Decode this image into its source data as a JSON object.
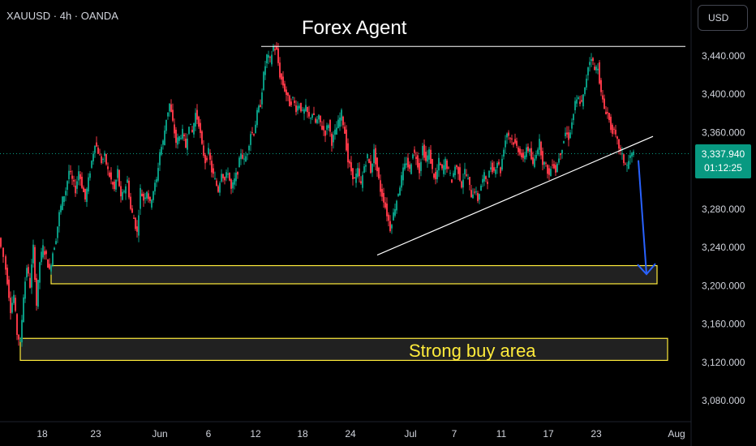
{
  "header": {
    "symbol_line": "XAUUSD · 4h · OANDA",
    "currency_button": "USD"
  },
  "annotations": {
    "title": "Forex Agent",
    "zone_label": "Strong buy area"
  },
  "price_badge": {
    "price": "3,337.940",
    "countdown": "01:12:25",
    "color": "#089981"
  },
  "colors": {
    "up": "#089981",
    "down": "#f23645",
    "zone_border": "#ffeb3b",
    "arrow": "#2962ff",
    "background": "#000000"
  },
  "chart_data": {
    "type": "candlestick",
    "title": "",
    "xlabel": "",
    "ylabel": "",
    "ylim": [
      3060,
      3465
    ],
    "grid": false,
    "x_tick_labels": [
      "18",
      "23",
      "Jun",
      "6",
      "12",
      "18",
      "24",
      "Jul",
      "7",
      "11",
      "17",
      "23",
      "Aug"
    ],
    "y_tick_labels": [
      "3,440.000",
      "3,400.000",
      "3,360.000",
      "3,280.000",
      "3,240.000",
      "3,200.000",
      "3,160.000",
      "3,120.000",
      "3,080.000"
    ],
    "y_tick_values": [
      3440,
      3400,
      3360,
      3280,
      3240,
      3200,
      3160,
      3120,
      3080
    ],
    "last_price": 3337.94,
    "close_path": [
      [
        0,
        3250
      ],
      [
        6,
        3230
      ],
      [
        10,
        3205
      ],
      [
        14,
        3175
      ],
      [
        18,
        3190
      ],
      [
        22,
        3150
      ],
      [
        26,
        3140
      ],
      [
        30,
        3190
      ],
      [
        34,
        3220
      ],
      [
        38,
        3200
      ],
      [
        42,
        3240
      ],
      [
        46,
        3180
      ],
      [
        50,
        3225
      ],
      [
        54,
        3240
      ],
      [
        58,
        3230
      ],
      [
        62,
        3215
      ],
      [
        66,
        3235
      ],
      [
        70,
        3250
      ],
      [
        74,
        3275
      ],
      [
        78,
        3290
      ],
      [
        82,
        3300
      ],
      [
        86,
        3320
      ],
      [
        90,
        3310
      ],
      [
        94,
        3300
      ],
      [
        98,
        3320
      ],
      [
        102,
        3305
      ],
      [
        106,
        3290
      ],
      [
        110,
        3310
      ],
      [
        114,
        3330
      ],
      [
        118,
        3350
      ],
      [
        122,
        3340
      ],
      [
        126,
        3330
      ],
      [
        130,
        3335
      ],
      [
        134,
        3320
      ],
      [
        138,
        3310
      ],
      [
        142,
        3300
      ],
      [
        146,
        3320
      ],
      [
        150,
        3290
      ],
      [
        154,
        3300
      ],
      [
        158,
        3310
      ],
      [
        162,
        3280
      ],
      [
        166,
        3270
      ],
      [
        170,
        3255
      ],
      [
        174,
        3300
      ],
      [
        178,
        3290
      ],
      [
        182,
        3300
      ],
      [
        186,
        3285
      ],
      [
        190,
        3300
      ],
      [
        194,
        3310
      ],
      [
        198,
        3340
      ],
      [
        202,
        3350
      ],
      [
        206,
        3375
      ],
      [
        210,
        3390
      ],
      [
        214,
        3370
      ],
      [
        218,
        3350
      ],
      [
        222,
        3355
      ],
      [
        226,
        3360
      ],
      [
        230,
        3345
      ],
      [
        234,
        3370
      ],
      [
        238,
        3360
      ],
      [
        242,
        3380
      ],
      [
        246,
        3370
      ],
      [
        250,
        3345
      ],
      [
        254,
        3330
      ],
      [
        258,
        3340
      ],
      [
        262,
        3320
      ],
      [
        266,
        3310
      ],
      [
        270,
        3300
      ],
      [
        274,
        3320
      ],
      [
        278,
        3310
      ],
      [
        282,
        3320
      ],
      [
        286,
        3300
      ],
      [
        290,
        3310
      ],
      [
        294,
        3320
      ],
      [
        298,
        3340
      ],
      [
        302,
        3330
      ],
      [
        306,
        3340
      ],
      [
        310,
        3360
      ],
      [
        314,
        3360
      ],
      [
        318,
        3380
      ],
      [
        322,
        3390
      ],
      [
        326,
        3420
      ],
      [
        330,
        3440
      ],
      [
        334,
        3435
      ],
      [
        338,
        3450
      ],
      [
        342,
        3445
      ],
      [
        346,
        3420
      ],
      [
        350,
        3410
      ],
      [
        354,
        3400
      ],
      [
        358,
        3390
      ],
      [
        362,
        3395
      ],
      [
        366,
        3385
      ],
      [
        370,
        3390
      ],
      [
        374,
        3380
      ],
      [
        378,
        3385
      ],
      [
        382,
        3375
      ],
      [
        386,
        3380
      ],
      [
        390,
        3370
      ],
      [
        394,
        3375
      ],
      [
        398,
        3365
      ],
      [
        402,
        3360
      ],
      [
        406,
        3370
      ],
      [
        410,
        3350
      ],
      [
        414,
        3360
      ],
      [
        418,
        3370
      ],
      [
        422,
        3380
      ],
      [
        426,
        3360
      ],
      [
        430,
        3330
      ],
      [
        434,
        3320
      ],
      [
        438,
        3310
      ],
      [
        442,
        3320
      ],
      [
        446,
        3305
      ],
      [
        450,
        3325
      ],
      [
        454,
        3335
      ],
      [
        458,
        3320
      ],
      [
        462,
        3340
      ],
      [
        466,
        3320
      ],
      [
        470,
        3300
      ],
      [
        474,
        3290
      ],
      [
        478,
        3275
      ],
      [
        482,
        3260
      ],
      [
        486,
        3275
      ],
      [
        490,
        3290
      ],
      [
        494,
        3305
      ],
      [
        498,
        3320
      ],
      [
        502,
        3330
      ],
      [
        506,
        3320
      ],
      [
        510,
        3340
      ],
      [
        514,
        3335
      ],
      [
        518,
        3320
      ],
      [
        522,
        3345
      ],
      [
        526,
        3330
      ],
      [
        530,
        3340
      ],
      [
        534,
        3320
      ],
      [
        538,
        3310
      ],
      [
        542,
        3330
      ],
      [
        546,
        3320
      ],
      [
        550,
        3330
      ],
      [
        554,
        3320
      ],
      [
        558,
        3310
      ],
      [
        562,
        3325
      ],
      [
        566,
        3320
      ],
      [
        570,
        3305
      ],
      [
        574,
        3320
      ],
      [
        578,
        3310
      ],
      [
        582,
        3295
      ],
      [
        586,
        3300
      ],
      [
        590,
        3290
      ],
      [
        594,
        3305
      ],
      [
        598,
        3315
      ],
      [
        602,
        3310
      ],
      [
        606,
        3325
      ],
      [
        610,
        3320
      ],
      [
        614,
        3330
      ],
      [
        618,
        3320
      ],
      [
        622,
        3345
      ],
      [
        626,
        3360
      ],
      [
        630,
        3355
      ],
      [
        634,
        3350
      ],
      [
        638,
        3345
      ],
      [
        642,
        3340
      ],
      [
        646,
        3330
      ],
      [
        650,
        3345
      ],
      [
        654,
        3340
      ],
      [
        658,
        3325
      ],
      [
        662,
        3340
      ],
      [
        666,
        3350
      ],
      [
        670,
        3330
      ],
      [
        674,
        3325
      ],
      [
        678,
        3315
      ],
      [
        682,
        3330
      ],
      [
        686,
        3320
      ],
      [
        690,
        3335
      ],
      [
        694,
        3345
      ],
      [
        698,
        3360
      ],
      [
        702,
        3355
      ],
      [
        706,
        3370
      ],
      [
        710,
        3390
      ],
      [
        714,
        3395
      ],
      [
        718,
        3390
      ],
      [
        722,
        3405
      ],
      [
        726,
        3430
      ],
      [
        730,
        3440
      ],
      [
        734,
        3425
      ],
      [
        738,
        3430
      ],
      [
        742,
        3400
      ],
      [
        746,
        3385
      ],
      [
        750,
        3380
      ],
      [
        754,
        3365
      ],
      [
        758,
        3360
      ],
      [
        762,
        3350
      ],
      [
        766,
        3340
      ],
      [
        770,
        3330
      ],
      [
        774,
        3325
      ],
      [
        778,
        3335
      ],
      [
        782,
        3338
      ]
    ],
    "drawings": {
      "resistance_line": {
        "from": [
          322,
          3450
        ],
        "to": [
          845,
          3450
        ]
      },
      "trendline": {
        "from": [
          465,
          3232
        ],
        "to": [
          805,
          3356
        ]
      },
      "demand_zone": {
        "x0": 63,
        "x1": 810,
        "y_top": 3221,
        "y_bottom": 3202
      },
      "strong_buy_zone": {
        "x0": 25,
        "x1": 823,
        "y_top": 3145,
        "y_bottom": 3122
      },
      "projection_arrow": {
        "from": [
          787,
          3331
        ],
        "to": [
          797,
          3212
        ]
      }
    }
  }
}
